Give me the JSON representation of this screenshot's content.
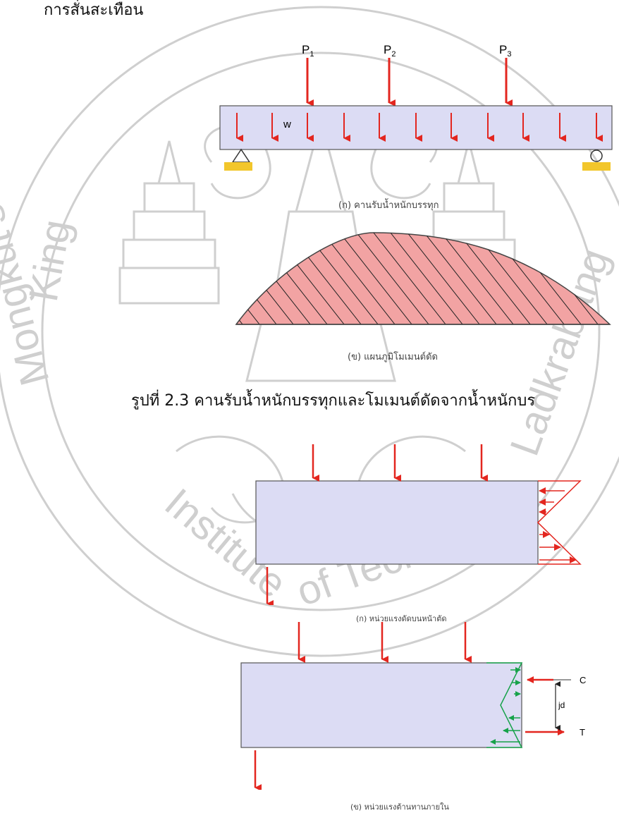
{
  "page": {
    "top_text": "การสั่นสะเทือน",
    "figure_caption": "รูปที่ 2.3 คานรับน้ำหนักบรรทุกและโมเมนต์ดัดจากน้ำหนักบร"
  },
  "beam_figure": {
    "loads": [
      {
        "label": "P",
        "sub": "1"
      },
      {
        "label": "P",
        "sub": "2"
      },
      {
        "label": "P",
        "sub": "3"
      }
    ],
    "distributed_load_label": "w",
    "caption": "(ก) คานรับน้ำหนักบรรทุก"
  },
  "moment_figure": {
    "caption": "(ข) แผนภูมิโมเมนต์ดัด"
  },
  "section_a": {
    "caption": "(ก) หน่วยแรงดัดบนหน้าตัด"
  },
  "section_b": {
    "labels": {
      "C": "C",
      "T": "T",
      "jd": "jd"
    },
    "caption": "(ข) หน่วยแรงต้านทานภายใน"
  },
  "watermark": {
    "text": "King Mongkut's Institute of Technology Ladkrabang",
    "fragments": [
      "King",
      "Mongkut's",
      "Institute",
      "of Technology",
      "Ladkrabang"
    ]
  },
  "colors": {
    "beam_fill": "#dcdcf4",
    "load_arrow": "#e3261f",
    "support_fill": "#f2c62b",
    "moment_fill": "#f2a3a3",
    "internal_arrow": "#17a24a",
    "watermark": "#c9c9c9"
  }
}
